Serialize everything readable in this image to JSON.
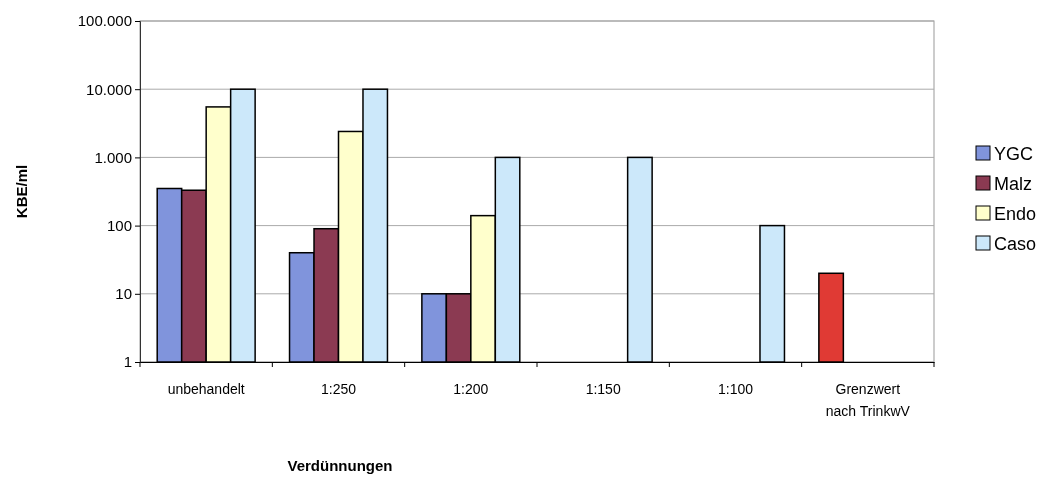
{
  "chart_data": {
    "type": "bar",
    "xlabel": "Verdünnungen",
    "ylabel": "KBE/ml",
    "log": true,
    "grid": "y",
    "legend": "right",
    "categories": [
      "unbehandelt",
      "1:250",
      "1:200",
      "1:150",
      "1:100",
      "Grenzwert\nnach TrinkwV"
    ],
    "ylim": [
      1,
      100000
    ],
    "yticks": [
      1,
      10,
      100,
      {
        "value": 1000,
        "label": "1.000"
      },
      {
        "value": 10000,
        "label": "10.000"
      },
      {
        "value": 100000,
        "label": "100.000"
      }
    ],
    "series": [
      {
        "name": "YGC",
        "color": "#8094dc",
        "colors": [
          "#8094dc",
          "#8094dc",
          "#8094dc",
          null,
          null,
          "#e03a34"
        ],
        "values": [
          350,
          40,
          10,
          null,
          null,
          20
        ]
      },
      {
        "name": "Malz",
        "color": "#8b3a52",
        "values": [
          330,
          90,
          10,
          null,
          null,
          null
        ]
      },
      {
        "name": "Endo",
        "color": "#ffffcc",
        "values": [
          5500,
          2400,
          140,
          null,
          null,
          null
        ]
      },
      {
        "name": "Caso",
        "color": "#cce8fa",
        "values": [
          10000,
          10000,
          1000,
          1000,
          100,
          null
        ]
      }
    ]
  }
}
